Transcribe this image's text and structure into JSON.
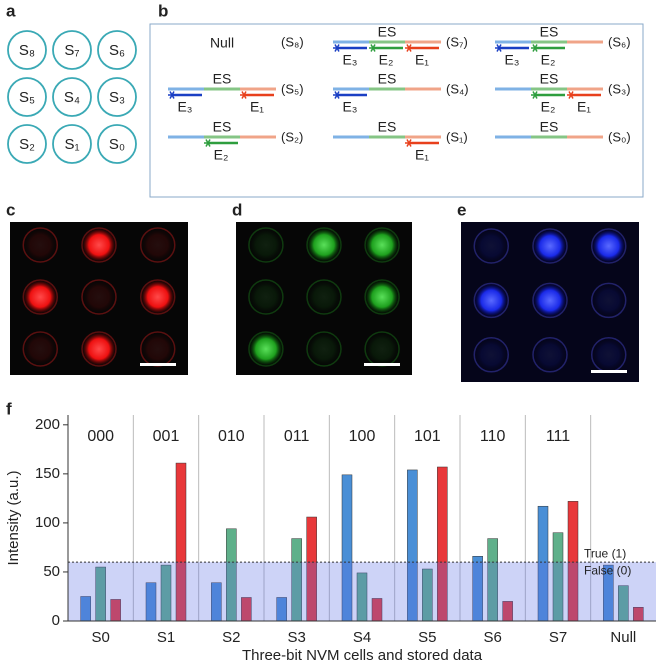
{
  "panel_labels": [
    "a",
    "b",
    "c",
    "d",
    "e",
    "f"
  ],
  "panel_a": {
    "cells": [
      "S₈",
      "S₇",
      "S₆",
      "S₅",
      "S₄",
      "S₃",
      "S₂",
      "S₁",
      "S₀"
    ]
  },
  "panel_b": {
    "cells": [
      {
        "top": "Null",
        "state": "(S₈)"
      },
      {
        "top": "ES",
        "state": "(S₇)",
        "probes": [
          {
            "label": "E₃",
            "color": "#1a3fc4"
          },
          {
            "label": "E₂",
            "color": "#2e9e3e"
          },
          {
            "label": "E₁",
            "color": "#e8401c"
          }
        ]
      },
      {
        "top": "ES",
        "state": "(S₆)",
        "probes": [
          {
            "label": "E₃",
            "color": "#1a3fc4"
          },
          {
            "label": "E₂",
            "color": "#2e9e3e"
          }
        ]
      },
      {
        "top": "ES",
        "state": "(S₅)",
        "probes": [
          {
            "label": "E₃",
            "color": "#1a3fc4"
          },
          {
            "label": "E₁",
            "color": "#e8401c"
          }
        ]
      },
      {
        "top": "ES",
        "state": "(S₄)",
        "probes": [
          {
            "label": "E₃",
            "color": "#1a3fc4"
          }
        ]
      },
      {
        "top": "ES",
        "state": "(S₃)",
        "probes": [
          {
            "label": "E₂",
            "color": "#2e9e3e"
          },
          {
            "label": "E₁",
            "color": "#e8401c"
          }
        ]
      },
      {
        "top": "ES",
        "state": "(S₂)",
        "probes": [
          {
            "label": "E₂",
            "color": "#2e9e3e"
          }
        ]
      },
      {
        "top": "ES",
        "state": "(S₁)",
        "probes": [
          {
            "label": "E₁",
            "color": "#e8401c"
          }
        ]
      },
      {
        "top": "ES",
        "state": "(S₀)"
      }
    ]
  },
  "chart_data": {
    "type": "bar",
    "ylabel": "Intensity (a.u.)",
    "xlabel": "Three-bit NVM cells and stored data",
    "categories": [
      "S0",
      "S1",
      "S2",
      "S3",
      "S4",
      "S5",
      "S6",
      "S7",
      "Null"
    ],
    "annotations": [
      "000",
      "001",
      "010",
      "011",
      "100",
      "101",
      "110",
      "111"
    ],
    "series": [
      {
        "color": "#4a8fd6",
        "values": [
          25,
          39,
          39,
          24,
          149,
          154,
          66,
          117,
          57
        ]
      },
      {
        "color": "#5fb08a",
        "values": [
          55,
          57,
          94,
          84,
          49,
          53,
          84,
          90,
          36
        ]
      },
      {
        "color": "#e8383a",
        "values": [
          22,
          161,
          24,
          106,
          23,
          157,
          20,
          122,
          14
        ]
      }
    ],
    "ylim": [
      0,
      210
    ],
    "yticks": [
      0,
      50,
      100,
      150,
      200
    ],
    "threshold": 60,
    "threshold_labels": [
      "True (1)",
      "False (0)"
    ]
  }
}
